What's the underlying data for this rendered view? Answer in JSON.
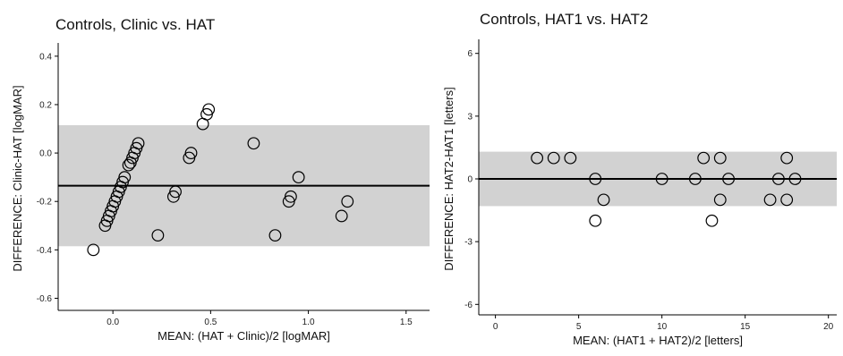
{
  "chart_data": [
    {
      "type": "scatter",
      "title": "Controls, Clinic vs. HAT",
      "xlabel": "MEAN: (HAT + Clinic)/2 [logMAR]",
      "ylabel": "DIFFERENCE: Clinic-HAT [logMAR]",
      "xlim": [
        -0.28,
        1.62
      ],
      "ylim": [
        -0.65,
        0.44
      ],
      "xticks": [
        0.0,
        0.5,
        1.0,
        1.5
      ],
      "xtick_labels": [
        "0.0",
        "0.5",
        "1.0",
        "1.5"
      ],
      "yticks": [
        0.4,
        0.2,
        0.0,
        -0.2,
        -0.4,
        -0.6
      ],
      "ytick_labels": [
        "0.4",
        "0.2",
        "0.0",
        "-0.2",
        "-0.4",
        "-0.6"
      ],
      "mean_difference": -0.135,
      "limits_of_agreement": [
        -0.385,
        0.115
      ],
      "grid": false,
      "points": [
        [
          -0.1,
          -0.4
        ],
        [
          -0.04,
          -0.3
        ],
        [
          -0.03,
          -0.28
        ],
        [
          -0.02,
          -0.26
        ],
        [
          -0.01,
          -0.24
        ],
        [
          0.0,
          -0.22
        ],
        [
          0.01,
          -0.2
        ],
        [
          0.02,
          -0.18
        ],
        [
          0.03,
          -0.16
        ],
        [
          0.04,
          -0.14
        ],
        [
          0.05,
          -0.12
        ],
        [
          0.06,
          -0.1
        ],
        [
          0.08,
          -0.05
        ],
        [
          0.09,
          -0.04
        ],
        [
          0.1,
          -0.02
        ],
        [
          0.11,
          0.0
        ],
        [
          0.12,
          0.02
        ],
        [
          0.13,
          0.04
        ],
        [
          0.23,
          -0.34
        ],
        [
          0.31,
          -0.18
        ],
        [
          0.32,
          -0.16
        ],
        [
          0.39,
          -0.02
        ],
        [
          0.4,
          0.0
        ],
        [
          0.46,
          0.12
        ],
        [
          0.48,
          0.16
        ],
        [
          0.49,
          0.18
        ],
        [
          0.72,
          0.04
        ],
        [
          0.83,
          -0.34
        ],
        [
          0.9,
          -0.2
        ],
        [
          0.91,
          -0.18
        ],
        [
          0.95,
          -0.1
        ],
        [
          1.17,
          -0.26
        ],
        [
          1.2,
          -0.2
        ]
      ]
    },
    {
      "type": "scatter",
      "title": "Controls, HAT1 vs. HAT2",
      "xlabel": "MEAN: (HAT1 + HAT2)/2 [letters]",
      "ylabel": "DIFFERENCE: HAT2-HAT1 [letters]",
      "xlim": [
        -1,
        20.5
      ],
      "ylim": [
        -6.5,
        6.5
      ],
      "xticks": [
        0,
        5,
        10,
        15,
        20
      ],
      "xtick_labels": [
        "0",
        "5",
        "10",
        "15",
        "20"
      ],
      "yticks": [
        6,
        3,
        0,
        -3,
        -6
      ],
      "ytick_labels": [
        "6",
        "3",
        "0",
        "-3",
        "-6"
      ],
      "mean_difference": 0.0,
      "limits_of_agreement": [
        -1.3,
        1.3
      ],
      "grid": false,
      "points": [
        [
          2.5,
          1
        ],
        [
          3.5,
          1
        ],
        [
          4.5,
          1
        ],
        [
          6.0,
          0
        ],
        [
          6.0,
          -2
        ],
        [
          6.5,
          -1
        ],
        [
          10.0,
          0
        ],
        [
          12.0,
          0
        ],
        [
          12.5,
          1
        ],
        [
          13.0,
          -2
        ],
        [
          13.5,
          1
        ],
        [
          13.5,
          -1
        ],
        [
          14.0,
          0
        ],
        [
          16.5,
          -1
        ],
        [
          17.0,
          0
        ],
        [
          17.5,
          1
        ],
        [
          17.5,
          -1
        ],
        [
          18.0,
          0
        ]
      ]
    }
  ]
}
